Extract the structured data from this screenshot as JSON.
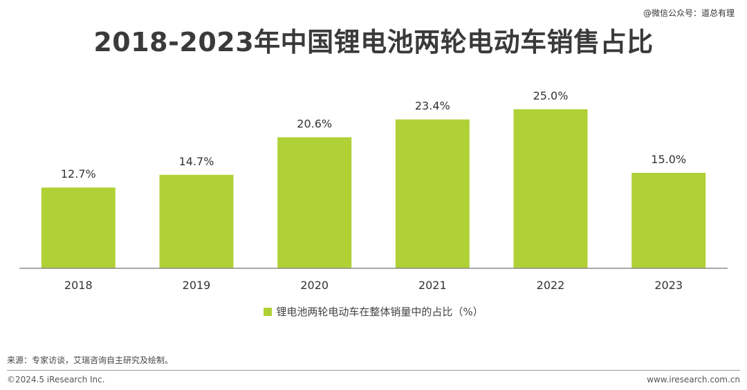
{
  "watermark": "@微信公众号：道总有理",
  "chart_data": {
    "type": "bar",
    "title": "2018-2023年中国锂电池两轮电动车销售占比",
    "categories": [
      "2018",
      "2019",
      "2020",
      "2021",
      "2022",
      "2023"
    ],
    "series": [
      {
        "name": "锂电池两轮电动车在整体销量中的占比（%）",
        "values": [
          12.7,
          14.7,
          20.6,
          23.4,
          25.0,
          15.0
        ],
        "labels": [
          "12.7%",
          "14.7%",
          "20.6%",
          "23.4%",
          "25.0%",
          "15.0%"
        ]
      }
    ],
    "ylim": [
      0,
      25
    ],
    "grid": false,
    "legend": "bottom-center",
    "bar_color": "#b0d136",
    "axis_color": "#8c8c8c"
  },
  "source": "来源：专家访谈，艾瑞咨询自主研究及绘制。",
  "copyright": "©2024.5 iResearch Inc.",
  "site": "www.iresearch.com.cn"
}
